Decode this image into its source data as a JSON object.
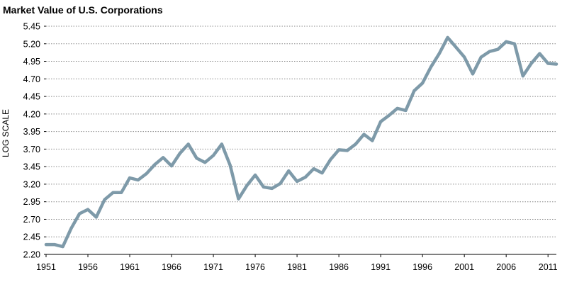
{
  "chart_data": {
    "type": "line",
    "title": "Market Value of U.S. Corporations",
    "xlabel": "",
    "ylabel": "LOG SCALE",
    "xlim": [
      1951,
      2012
    ],
    "ylim": [
      2.2,
      5.45
    ],
    "yticks": [
      "2.20",
      "2.45",
      "2.70",
      "2.95",
      "3.20",
      "3.45",
      "3.70",
      "3.95",
      "4.20",
      "4.45",
      "4.70",
      "4.95",
      "5.20",
      "5.45"
    ],
    "xticks": [
      "1951",
      "1956",
      "1961",
      "1966",
      "1971",
      "1976",
      "1981",
      "1986",
      "1991",
      "1996",
      "2001",
      "2006",
      "2011"
    ],
    "grid": true,
    "line_color": "#7e9aa9",
    "series": [
      {
        "x": [
          1951,
          1952,
          1953,
          1954,
          1955,
          1956,
          1957,
          1958,
          1959,
          1960,
          1961,
          1962,
          1963,
          1964,
          1965,
          1966,
          1967,
          1968,
          1969,
          1970,
          1971,
          1972,
          1973,
          1974,
          1975,
          1976,
          1977,
          1978,
          1979,
          1980,
          1981,
          1982,
          1983,
          1984,
          1985,
          1986,
          1987,
          1988,
          1989,
          1990,
          1991,
          1992,
          1993,
          1994,
          1995,
          1996,
          1997,
          1998,
          1999,
          2000,
          2001,
          2002,
          2003,
          2004,
          2005,
          2006,
          2007,
          2008,
          2009,
          2010,
          2011,
          2012
        ],
        "values": [
          2.34,
          2.34,
          2.31,
          2.57,
          2.78,
          2.84,
          2.73,
          2.98,
          3.08,
          3.08,
          3.29,
          3.26,
          3.35,
          3.48,
          3.58,
          3.46,
          3.64,
          3.77,
          3.57,
          3.51,
          3.61,
          3.77,
          3.47,
          2.99,
          3.18,
          3.33,
          3.16,
          3.14,
          3.21,
          3.39,
          3.24,
          3.3,
          3.42,
          3.36,
          3.55,
          3.69,
          3.68,
          3.77,
          3.91,
          3.82,
          4.09,
          4.18,
          4.28,
          4.25,
          4.53,
          4.64,
          4.87,
          5.06,
          5.29,
          5.15,
          5.01,
          4.77,
          5.01,
          5.09,
          5.12,
          5.23,
          5.2,
          4.74,
          4.92,
          5.06,
          4.92,
          4.91
        ]
      }
    ]
  }
}
